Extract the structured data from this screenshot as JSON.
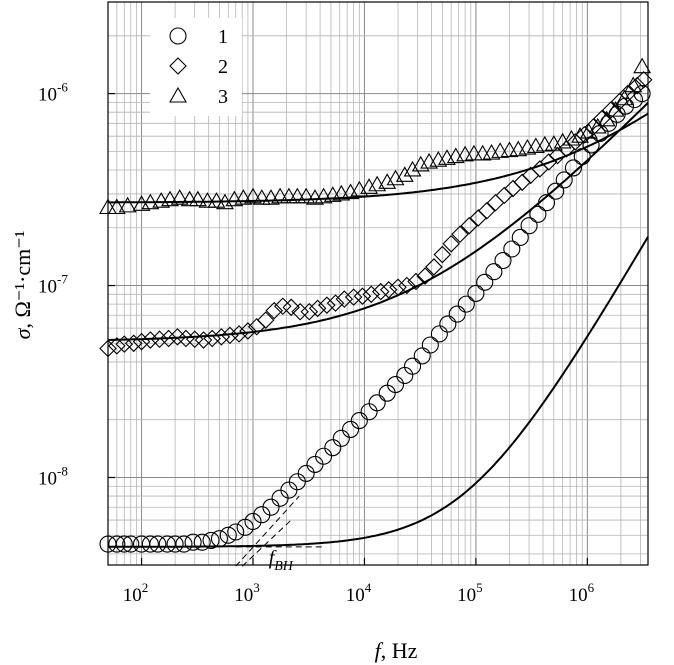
{
  "chart_data": {
    "type": "scatter",
    "x_scale": "log",
    "y_scale": "log",
    "xlim": [
      50,
      3500000
    ],
    "ylim": [
      3.5e-09,
      3e-06
    ],
    "grid": true,
    "legend_position": "top-left",
    "xlabel": {
      "symbol": "f",
      "unit": ", Hz"
    },
    "ylabel": {
      "symbol": "σ",
      "unit": ", Ω⁻¹·cm⁻¹"
    },
    "x_ticks": [
      {
        "value": 100,
        "base": "10",
        "exp": "2"
      },
      {
        "value": 1000,
        "base": "10",
        "exp": "3"
      },
      {
        "value": 10000,
        "base": "10",
        "exp": "4"
      },
      {
        "value": 100000,
        "base": "10",
        "exp": "5"
      },
      {
        "value": 1000000,
        "base": "10",
        "exp": "6"
      }
    ],
    "y_ticks": [
      {
        "value": 1e-08,
        "base": "10",
        "exp": "-8"
      },
      {
        "value": 1e-07,
        "base": "10",
        "exp": "-7"
      },
      {
        "value": 1e-06,
        "base": "10",
        "exp": "-6"
      }
    ],
    "annotation": {
      "symbol": "f",
      "subscript": "BH",
      "x": 1300,
      "y": 4.5e-09
    },
    "series": [
      {
        "name": "1",
        "marker": "circle",
        "points": [
          [
            50,
            4.5e-09
          ],
          [
            60,
            4.5e-09
          ],
          [
            70,
            4.5e-09
          ],
          [
            80,
            4.5e-09
          ],
          [
            100,
            4.5e-09
          ],
          [
            120,
            4.5e-09
          ],
          [
            140,
            4.5e-09
          ],
          [
            170,
            4.5e-09
          ],
          [
            200,
            4.5e-09
          ],
          [
            240,
            4.5e-09
          ],
          [
            290,
            4.6e-09
          ],
          [
            350,
            4.6e-09
          ],
          [
            420,
            4.7e-09
          ],
          [
            500,
            4.8e-09
          ],
          [
            600,
            5e-09
          ],
          [
            700,
            5.2e-09
          ],
          [
            850,
            5.5e-09
          ],
          [
            1000,
            5.9e-09
          ],
          [
            1200,
            6.4e-09
          ],
          [
            1450,
            7e-09
          ],
          [
            1750,
            7.8e-09
          ],
          [
            2100,
            8.6e-09
          ],
          [
            2500,
            9.5e-09
          ],
          [
            3000,
            1.05e-08
          ],
          [
            3600,
            1.17e-08
          ],
          [
            4300,
            1.29e-08
          ],
          [
            5200,
            1.43e-08
          ],
          [
            6200,
            1.6e-08
          ],
          [
            7500,
            1.78e-08
          ],
          [
            9000,
            1.98e-08
          ],
          [
            11000,
            2.2e-08
          ],
          [
            13000,
            2.45e-08
          ],
          [
            16000,
            2.75e-08
          ],
          [
            19000,
            3.05e-08
          ],
          [
            23000,
            3.4e-08
          ],
          [
            27000,
            3.8e-08
          ],
          [
            33000,
            4.3e-08
          ],
          [
            39000,
            4.9e-08
          ],
          [
            47000,
            5.6e-08
          ],
          [
            56000,
            6.3e-08
          ],
          [
            68000,
            7.1e-08
          ],
          [
            82000,
            8e-08
          ],
          [
            100000,
            9.1e-08
          ],
          [
            120000,
            1.04e-07
          ],
          [
            145000,
            1.18e-07
          ],
          [
            175000,
            1.35e-07
          ],
          [
            210000,
            1.55e-07
          ],
          [
            250000,
            1.78e-07
          ],
          [
            300000,
            2.05e-07
          ],
          [
            360000,
            2.35e-07
          ],
          [
            430000,
            2.7e-07
          ],
          [
            520000,
            3.1e-07
          ],
          [
            620000,
            3.55e-07
          ],
          [
            750000,
            4.1e-07
          ],
          [
            900000,
            4.7e-07
          ],
          [
            1080000,
            5.4e-07
          ],
          [
            1300000,
            6.2e-07
          ],
          [
            1550000,
            7e-07
          ],
          [
            1850000,
            7.8e-07
          ],
          [
            2200000,
            8.6e-07
          ],
          [
            2650000,
            9.3e-07
          ],
          [
            3100000,
            1e-06
          ]
        ]
      },
      {
        "name": "2",
        "marker": "diamond",
        "points": [
          [
            50,
            4.7e-08
          ],
          [
            60,
            4.85e-08
          ],
          [
            70,
            4.95e-08
          ],
          [
            85,
            5e-08
          ],
          [
            100,
            5.1e-08
          ],
          [
            120,
            5.2e-08
          ],
          [
            145,
            5.25e-08
          ],
          [
            175,
            5.3e-08
          ],
          [
            210,
            5.4e-08
          ],
          [
            250,
            5.3e-08
          ],
          [
            300,
            5.25e-08
          ],
          [
            360,
            5.2e-08
          ],
          [
            430,
            5.3e-08
          ],
          [
            520,
            5.4e-08
          ],
          [
            620,
            5.5e-08
          ],
          [
            750,
            5.6e-08
          ],
          [
            900,
            5.8e-08
          ],
          [
            1080,
            6.1e-08
          ],
          [
            1300,
            6.6e-08
          ],
          [
            1550,
            7.4e-08
          ],
          [
            1850,
            7.8e-08
          ],
          [
            2200,
            7.7e-08
          ],
          [
            2650,
            7.3e-08
          ],
          [
            3200,
            7.3e-08
          ],
          [
            3800,
            7.6e-08
          ],
          [
            4600,
            7.9e-08
          ],
          [
            5500,
            8.1e-08
          ],
          [
            6600,
            8.5e-08
          ],
          [
            8000,
            8.7e-08
          ],
          [
            9600,
            8.8e-08
          ],
          [
            11500,
            9e-08
          ],
          [
            14000,
            9.3e-08
          ],
          [
            16500,
            9.5e-08
          ],
          [
            20000,
            9.8e-08
          ],
          [
            24000,
            1e-07
          ],
          [
            29000,
            1.05e-07
          ],
          [
            35000,
            1.12e-07
          ],
          [
            42000,
            1.25e-07
          ],
          [
            50000,
            1.45e-07
          ],
          [
            60000,
            1.65e-07
          ],
          [
            72000,
            1.85e-07
          ],
          [
            87000,
            2.05e-07
          ],
          [
            105000,
            2.25e-07
          ],
          [
            125000,
            2.45e-07
          ],
          [
            150000,
            2.7e-07
          ],
          [
            180000,
            2.95e-07
          ],
          [
            215000,
            3.2e-07
          ],
          [
            260000,
            3.45e-07
          ],
          [
            310000,
            3.75e-07
          ],
          [
            375000,
            4.05e-07
          ],
          [
            450000,
            4.4e-07
          ],
          [
            540000,
            4.75e-07
          ],
          [
            650000,
            5.15e-07
          ],
          [
            780000,
            5.6e-07
          ],
          [
            940000,
            6.1e-07
          ],
          [
            1130000,
            6.7e-07
          ],
          [
            1350000,
            7.4e-07
          ],
          [
            1620000,
            8.2e-07
          ],
          [
            1950000,
            9.1e-07
          ],
          [
            2300000,
            1e-06
          ],
          [
            2800000,
            1.1e-06
          ],
          [
            3200000,
            1.18e-06
          ]
        ]
      },
      {
        "name": "3",
        "marker": "triangle",
        "points": [
          [
            50,
            2.55e-07
          ],
          [
            60,
            2.55e-07
          ],
          [
            75,
            2.6e-07
          ],
          [
            100,
            2.65e-07
          ],
          [
            120,
            2.7e-07
          ],
          [
            150,
            2.75e-07
          ],
          [
            180,
            2.8e-07
          ],
          [
            220,
            2.85e-07
          ],
          [
            270,
            2.8e-07
          ],
          [
            320,
            2.8e-07
          ],
          [
            390,
            2.75e-07
          ],
          [
            470,
            2.75e-07
          ],
          [
            560,
            2.7e-07
          ],
          [
            680,
            2.8e-07
          ],
          [
            820,
            2.85e-07
          ],
          [
            1000,
            2.9e-07
          ],
          [
            1200,
            2.85e-07
          ],
          [
            1450,
            2.85e-07
          ],
          [
            1750,
            2.9e-07
          ],
          [
            2100,
            2.9e-07
          ],
          [
            2500,
            2.9e-07
          ],
          [
            3000,
            2.9e-07
          ],
          [
            3600,
            2.85e-07
          ],
          [
            4300,
            2.9e-07
          ],
          [
            5200,
            2.95e-07
          ],
          [
            6200,
            3e-07
          ],
          [
            7500,
            3.05e-07
          ],
          [
            9000,
            3.15e-07
          ],
          [
            11000,
            3.25e-07
          ],
          [
            13000,
            3.35e-07
          ],
          [
            16000,
            3.45e-07
          ],
          [
            19000,
            3.6e-07
          ],
          [
            23000,
            3.75e-07
          ],
          [
            27000,
            4e-07
          ],
          [
            32000,
            4.25e-07
          ],
          [
            38000,
            4.4e-07
          ],
          [
            46000,
            4.5e-07
          ],
          [
            55000,
            4.6e-07
          ],
          [
            66000,
            4.7e-07
          ],
          [
            80000,
            4.8e-07
          ],
          [
            96000,
            4.85e-07
          ],
          [
            115000,
            4.85e-07
          ],
          [
            138000,
            4.9e-07
          ],
          [
            165000,
            5e-07
          ],
          [
            200000,
            5.05e-07
          ],
          [
            240000,
            5.1e-07
          ],
          [
            290000,
            5.2e-07
          ],
          [
            345000,
            5.3e-07
          ],
          [
            415000,
            5.4e-07
          ],
          [
            500000,
            5.45e-07
          ],
          [
            600000,
            5.6e-07
          ],
          [
            720000,
            5.8e-07
          ],
          [
            860000,
            6e-07
          ],
          [
            1030000,
            6.3e-07
          ],
          [
            1240000,
            6.7e-07
          ],
          [
            1490000,
            7.3e-07
          ],
          [
            1790000,
            8.2e-07
          ],
          [
            2150000,
            9.4e-07
          ],
          [
            2580000,
            1.1e-06
          ],
          [
            3100000,
            1.38e-06
          ]
        ]
      }
    ],
    "fit_curves": [
      {
        "series": "1",
        "sigma0": 4.35e-09,
        "A": 5e-14,
        "n": 1.0
      },
      {
        "series": "2",
        "sigma0": 5.1e-08,
        "A": 1e-10,
        "n": 0.6
      },
      {
        "series": "3",
        "sigma0": 2.7e-07,
        "A": 1.3e-10,
        "n": 0.55
      }
    ],
    "guide_lines": [
      {
        "style": "dashed",
        "from": [
          700,
          4.35e-09
        ],
        "to": [
          4500,
          4.35e-09
        ]
      },
      {
        "style": "dashed",
        "from": [
          700,
          3.45e-09
        ],
        "to": [
          2600,
          8e-09
        ]
      },
      {
        "style": "dashed",
        "from": [
          800,
          3.45e-09
        ],
        "to": [
          2200,
          6e-09
        ]
      }
    ]
  }
}
